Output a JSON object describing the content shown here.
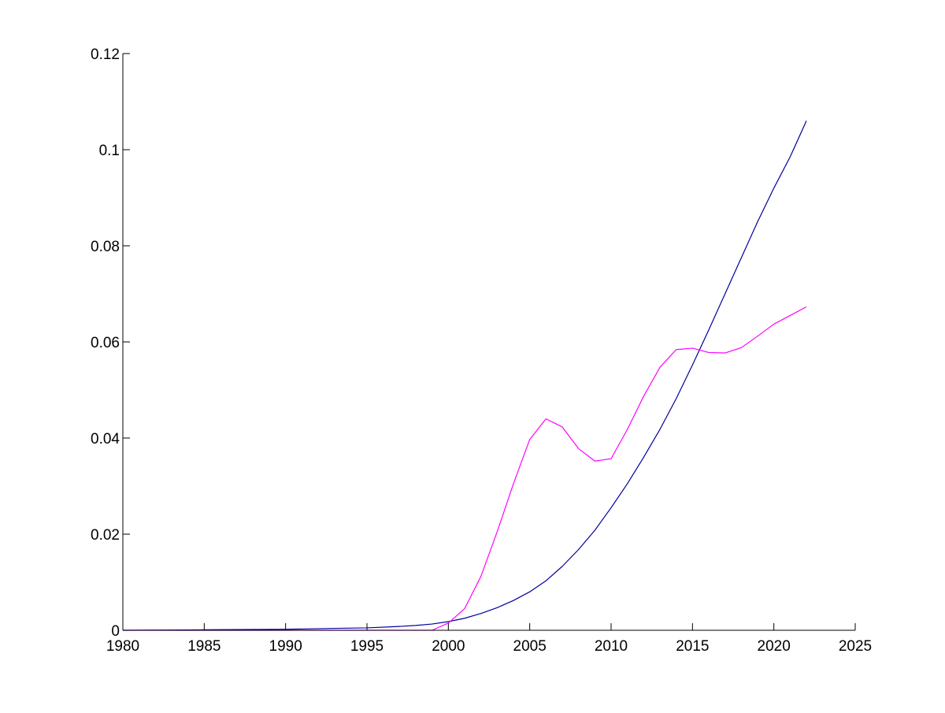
{
  "chart_data": {
    "type": "line",
    "title": "",
    "xlabel": "",
    "ylabel": "",
    "xlim": [
      1980,
      2025
    ],
    "ylim": [
      0,
      0.12
    ],
    "xticks": [
      1980,
      1985,
      1990,
      1995,
      2000,
      2005,
      2010,
      2015,
      2020,
      2025
    ],
    "yticks": [
      0,
      0.02,
      0.04,
      0.06,
      0.08,
      0.1,
      0.12
    ],
    "xtick_labels": [
      "1980",
      "1985",
      "1990",
      "1995",
      "2000",
      "2005",
      "2010",
      "2015",
      "2020",
      "2025"
    ],
    "ytick_labels": [
      "0",
      "0.02",
      "0.04",
      "0.06",
      "0.08",
      "0.1",
      "0.12"
    ],
    "grid": false,
    "legend": "none",
    "series": [
      {
        "color": "#0000a0",
        "x": [
          1980,
          1985,
          1990,
          1993,
          1995,
          1997,
          1998,
          1999,
          2000,
          2001,
          2002,
          2003,
          2004,
          2005,
          2006,
          2007,
          2008,
          2009,
          2010,
          2011,
          2012,
          2013,
          2014,
          2015,
          2016,
          2017,
          2018,
          2019,
          2020,
          2021,
          2022
        ],
        "y": [
          0.0,
          0.0001,
          0.0002,
          0.0004,
          0.0005,
          0.0008,
          0.001,
          0.0013,
          0.0018,
          0.0025,
          0.0035,
          0.0047,
          0.0062,
          0.008,
          0.0103,
          0.0133,
          0.0168,
          0.0208,
          0.0255,
          0.0305,
          0.036,
          0.0418,
          0.0482,
          0.0552,
          0.0625,
          0.07,
          0.0775,
          0.085,
          0.092,
          0.0985,
          0.106
        ]
      },
      {
        "color": "#ff00ff",
        "x": [
          1980,
          1985,
          1990,
          1995,
          1998,
          1999,
          2000,
          2001,
          2002,
          2003,
          2004,
          2005,
          2006,
          2007,
          2008,
          2009,
          2010,
          2011,
          2012,
          2013,
          2014,
          2015,
          2016,
          2017,
          2018,
          2019,
          2020,
          2021,
          2022
        ],
        "y": [
          0.0,
          0.0,
          0.0,
          0.0,
          0.0,
          0.0,
          0.0015,
          0.0045,
          0.0112,
          0.0205,
          0.0305,
          0.0397,
          0.044,
          0.0423,
          0.0378,
          0.0352,
          0.0357,
          0.0418,
          0.0487,
          0.0547,
          0.0584,
          0.0587,
          0.0578,
          0.0577,
          0.0588,
          0.0612,
          0.0637,
          0.0655,
          0.0673
        ]
      }
    ]
  }
}
